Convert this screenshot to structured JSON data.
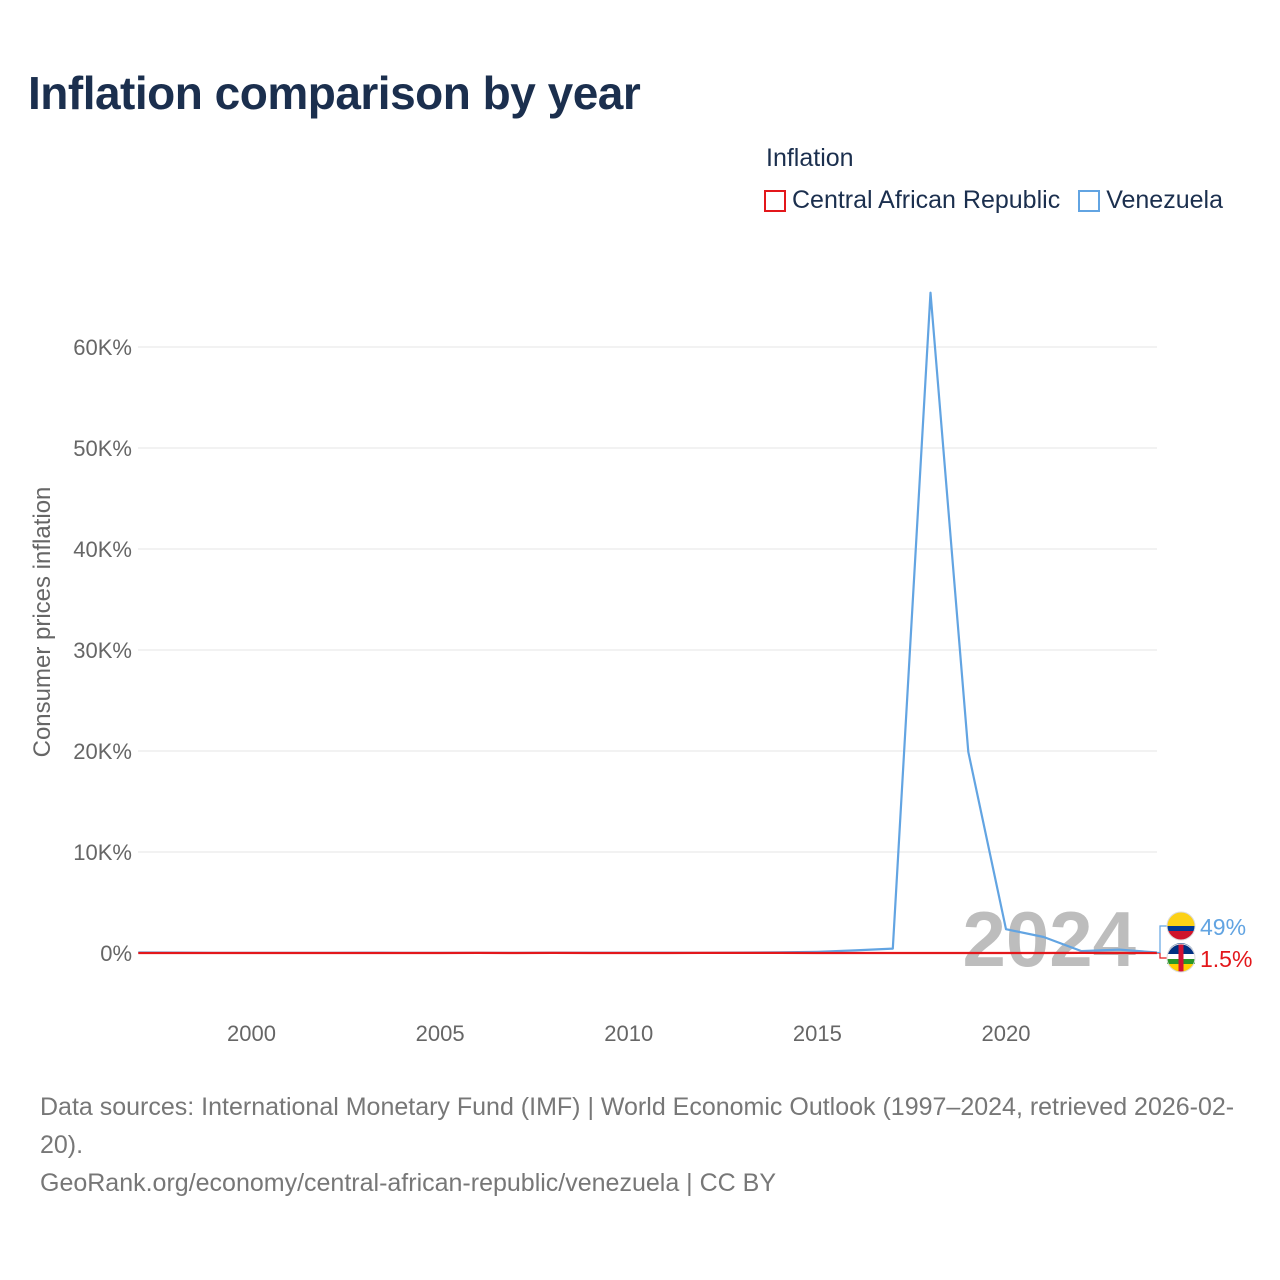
{
  "title": "Inflation comparison by year",
  "legend": {
    "title": "Inflation",
    "items": [
      {
        "label": "Central African Republic",
        "color": "#e3171b"
      },
      {
        "label": "Venezuela",
        "color": "#62a4e2"
      }
    ]
  },
  "chart_data": {
    "type": "line",
    "title": "Inflation comparison by year",
    "xlabel": "",
    "ylabel": "Consumer prices inflation",
    "xlim": [
      1997,
      2024
    ],
    "ylim": [
      -5000,
      65000
    ],
    "grid": true,
    "x_ticks": [
      2000,
      2005,
      2010,
      2015,
      2020
    ],
    "x_tick_labels": [
      "2000",
      "2005",
      "2010",
      "2015",
      "2020"
    ],
    "y_ticks": [
      0,
      10000,
      20000,
      30000,
      40000,
      50000,
      60000
    ],
    "y_tick_labels": [
      "0%",
      "10K%",
      "20K%",
      "30K%",
      "40K%",
      "50K%",
      "60K%"
    ],
    "x": [
      1997,
      1998,
      1999,
      2000,
      2001,
      2002,
      2003,
      2004,
      2005,
      2006,
      2007,
      2008,
      2009,
      2010,
      2011,
      2012,
      2013,
      2014,
      2015,
      2016,
      2017,
      2018,
      2019,
      2020,
      2021,
      2022,
      2023,
      2024
    ],
    "series": [
      {
        "name": "Central African Republic",
        "color": "#e3171b",
        "values": [
          1.6,
          -1.9,
          -1.4,
          3.2,
          3.8,
          2.3,
          4.4,
          -2.2,
          2.9,
          6.7,
          0.9,
          9.3,
          3.5,
          1.5,
          1.2,
          5.9,
          6.6,
          11.6,
          4.5,
          4.6,
          4.2,
          1.6,
          2.7,
          0.9,
          4.3,
          5.6,
          3.0,
          1.5
        ],
        "end_label": "1.5%"
      },
      {
        "name": "Venezuela",
        "color": "#62a4e2",
        "values": [
          50,
          36,
          24,
          16,
          12,
          22,
          31,
          22,
          16,
          14,
          19,
          31,
          27,
          28,
          26,
          21,
          41,
          62,
          122,
          255,
          438,
          65374,
          19906,
          2355,
          1589,
          186,
          337,
          49
        ],
        "end_label": "49%"
      }
    ],
    "annotation": "2024"
  },
  "footer": {
    "sources": "Data sources: International Monetary Fund (IMF) | World Economic Outlook (1997–2024, retrieved 2026-02-20).",
    "link": "GeoRank.org/economy/central-african-republic/venezuela | CC BY"
  }
}
